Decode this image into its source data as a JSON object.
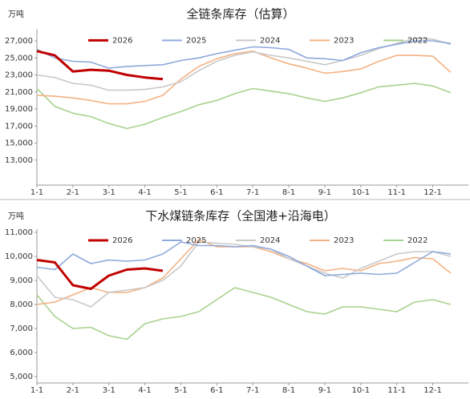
{
  "chart_data": [
    {
      "type": "line",
      "title": "全链条库存（估算）",
      "y_label": "万吨",
      "legend": "top",
      "categories": [
        "1-1",
        null,
        "2-1",
        null,
        "3-1",
        null,
        "4-1",
        null,
        "5-1",
        null,
        "6-1",
        null,
        "7-1",
        null,
        "8-1",
        null,
        "9-1",
        null,
        "10-1",
        null,
        "11-1",
        null,
        "12-1",
        null
      ],
      "ylim": [
        11000,
        28000
      ],
      "yticks": [
        {
          "value": 13000,
          "label": "13,000"
        },
        {
          "value": 15000,
          "label": "15,000"
        },
        {
          "value": 17000,
          "label": "17,000"
        },
        {
          "value": 19000,
          "label": "19,000"
        },
        {
          "value": 21000,
          "label": "21,000"
        },
        {
          "value": 23000,
          "label": "23,000"
        },
        {
          "value": 25000,
          "label": "25,000"
        },
        {
          "value": 27000,
          "label": "27,000"
        }
      ],
      "series": [
        {
          "name": "2026",
          "color": "#c00000",
          "values": [
            25800,
            25300,
            23400,
            23600,
            23500,
            23000,
            22700,
            22500,
            null,
            null,
            null,
            null,
            null,
            null,
            null,
            null,
            null,
            null,
            null,
            null,
            null,
            null,
            null,
            null
          ]
        },
        {
          "name": "2025",
          "color": "#8ea9db",
          "values": [
            26000,
            25000,
            24600,
            24500,
            23800,
            24000,
            24100,
            24200,
            24700,
            25000,
            25500,
            25900,
            26300,
            26200,
            26000,
            25000,
            24900,
            24700,
            25600,
            26200,
            26600,
            27000,
            27000,
            26700
          ]
        },
        {
          "name": "2024",
          "color": "#c9c9c9",
          "values": [
            23000,
            22700,
            22000,
            21800,
            21200,
            21200,
            21300,
            21600,
            22200,
            23500,
            24600,
            25300,
            25700,
            25300,
            25000,
            24600,
            24200,
            24700,
            25300,
            26100,
            26700,
            27300,
            27200,
            26600
          ]
        },
        {
          "name": "2023",
          "color": "#f4b183",
          "values": [
            20600,
            20500,
            20300,
            20000,
            19600,
            19600,
            19900,
            20600,
            22500,
            24000,
            24900,
            25500,
            25800,
            25000,
            24300,
            23800,
            23200,
            23400,
            23700,
            24600,
            25300,
            25300,
            25200,
            23300
          ]
        },
        {
          "name": "2022",
          "color": "#a9d18e",
          "values": [
            21400,
            19300,
            18500,
            18100,
            17300,
            16700,
            17200,
            18000,
            18700,
            19500,
            20000,
            20800,
            21400,
            21100,
            20800,
            20300,
            19900,
            20300,
            20900,
            21600,
            21800,
            22000,
            21700,
            20900
          ]
        }
      ]
    },
    {
      "type": "line",
      "title": "下水煤链条库存（全国港+沿海电）",
      "y_label": "万吨",
      "legend": "top",
      "categories": [
        "1-1",
        null,
        "2-1",
        null,
        "3-1",
        null,
        "4-1",
        null,
        "5-1",
        null,
        "6-1",
        null,
        "7-1",
        null,
        "8-1",
        null,
        "9-1",
        null,
        "10-1",
        null,
        "11-1",
        null,
        "12-1",
        null
      ],
      "ylim": [
        5000,
        11000
      ],
      "yticks": [
        {
          "value": 5000,
          "label": "5,000"
        },
        {
          "value": 6000,
          "label": "6,000"
        },
        {
          "value": 7000,
          "label": "7,000"
        },
        {
          "value": 8000,
          "label": "8,000"
        },
        {
          "value": 9000,
          "label": "9,000"
        },
        {
          "value": 10000,
          "label": "10,000"
        },
        {
          "value": 11000,
          "label": "11,000"
        }
      ],
      "series": [
        {
          "name": "2026",
          "color": "#c00000",
          "values": [
            9850,
            9750,
            8800,
            8650,
            9200,
            9450,
            9500,
            9400,
            null,
            null,
            null,
            null,
            null,
            null,
            null,
            null,
            null,
            null,
            null,
            null,
            null,
            null,
            null,
            null
          ]
        },
        {
          "name": "2025",
          "color": "#8ea9db",
          "values": [
            9550,
            9450,
            10100,
            9700,
            9850,
            9800,
            9850,
            10100,
            10600,
            10450,
            10450,
            10400,
            10450,
            10300,
            10000,
            9600,
            9200,
            9250,
            9300,
            9250,
            9300,
            9750,
            10200,
            10100
          ]
        },
        {
          "name": "2024",
          "color": "#c9c9c9",
          "values": [
            9200,
            8300,
            8200,
            7900,
            8500,
            8600,
            8700,
            9000,
            9600,
            10600,
            10550,
            10500,
            10400,
            10300,
            9900,
            9600,
            9300,
            9100,
            9500,
            9800,
            10100,
            10200,
            10200,
            10000
          ]
        },
        {
          "name": "2023",
          "color": "#f4b183",
          "values": [
            8000,
            8100,
            8400,
            8700,
            8500,
            8500,
            8700,
            9100,
            9900,
            10700,
            10400,
            10400,
            10400,
            10200,
            9900,
            9700,
            9400,
            9500,
            9400,
            9700,
            9800,
            9950,
            9900,
            9300
          ]
        },
        {
          "name": "2022",
          "color": "#a9d18e",
          "values": [
            8400,
            7500,
            7000,
            7050,
            6700,
            6550,
            7200,
            7400,
            7500,
            7700,
            8200,
            8700,
            8500,
            8300,
            8000,
            7700,
            7600,
            7900,
            7900,
            7800,
            7700,
            8100,
            8200,
            8000
          ]
        }
      ]
    }
  ]
}
